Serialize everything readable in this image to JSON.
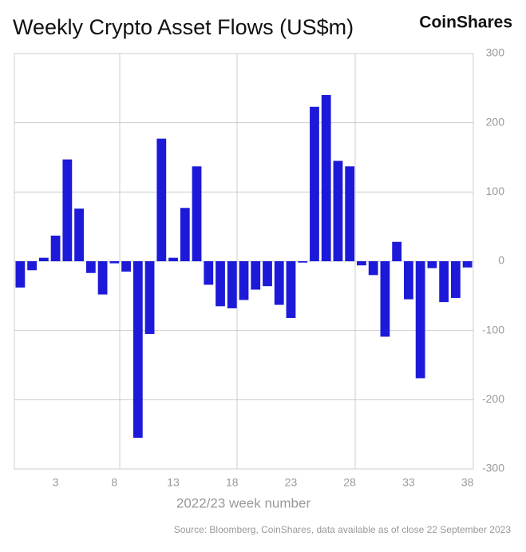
{
  "chart_data": {
    "type": "bar",
    "title": "Weekly Crypto Asset Flows (US$m)",
    "brand": "CoinShares",
    "x_label": "2022/23 week number",
    "source": "Source: Bloomberg, CoinShares, data available as of close 22 September 2023",
    "categories": [
      null,
      null,
      null,
      "3",
      null,
      null,
      null,
      null,
      "8",
      null,
      null,
      null,
      null,
      "13",
      null,
      null,
      null,
      null,
      "18",
      null,
      null,
      null,
      null,
      "23",
      null,
      null,
      null,
      null,
      "28",
      null,
      null,
      null,
      null,
      "33",
      null,
      null,
      null,
      null,
      "38"
    ],
    "values": [
      -38,
      -13,
      5,
      37,
      147,
      76,
      -17,
      -48,
      -3,
      -15,
      -255,
      -105,
      177,
      5,
      77,
      137,
      -34,
      -65,
      -68,
      -56,
      -41,
      -36,
      -63,
      -82,
      -2,
      223,
      240,
      145,
      137,
      -6,
      -20,
      -109,
      28,
      -55,
      -169,
      -10,
      -59,
      -53,
      -9
    ],
    "color": "#1c1ad8",
    "ylim": [
      -300,
      300
    ],
    "yticks": [
      300,
      200,
      100,
      0,
      -100,
      -200,
      -300
    ],
    "grid": true
  }
}
